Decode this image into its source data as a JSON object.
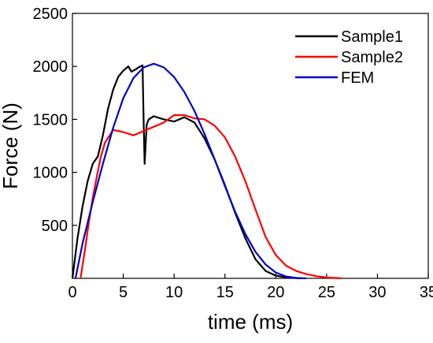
{
  "chart_data": {
    "type": "line",
    "title": "",
    "xlabel": "time (ms)",
    "ylabel": "Force (N)",
    "xlim": [
      0,
      35
    ],
    "ylim": [
      0,
      2500
    ],
    "x_ticks": [
      0,
      5,
      10,
      15,
      20,
      25,
      30,
      35
    ],
    "y_ticks": [
      500,
      1000,
      1500,
      2000,
      2500
    ],
    "grid": false,
    "legend": "top-right",
    "series": [
      {
        "name": "Sample1",
        "color": "#000000",
        "x": [
          0,
          0.5,
          1,
          1.5,
          2,
          2.5,
          3,
          3.5,
          4,
          4.5,
          5,
          5.5,
          5.8,
          6.2,
          6.5,
          6.9,
          7.0,
          7.1,
          7.3,
          7.5,
          8,
          9,
          10,
          11,
          12,
          13,
          14,
          15,
          16,
          17,
          18,
          19,
          20,
          21,
          22,
          22.5
        ],
        "y": [
          0,
          380,
          680,
          920,
          1080,
          1150,
          1350,
          1600,
          1780,
          1900,
          1960,
          2000,
          1950,
          1970,
          1990,
          2010,
          1500,
          1080,
          1450,
          1500,
          1530,
          1500,
          1480,
          1520,
          1470,
          1320,
          1120,
          880,
          620,
          380,
          180,
          70,
          25,
          10,
          3,
          0
        ]
      },
      {
        "name": "Sample2",
        "color": "#ff0000",
        "x": [
          0.8,
          1.2,
          1.6,
          2,
          2.4,
          2.8,
          3.2,
          3.6,
          4,
          5,
          6,
          7,
          8,
          9,
          10,
          11,
          12,
          13,
          14,
          15,
          16,
          17,
          18,
          19,
          20,
          21,
          22,
          23,
          24,
          25,
          26,
          26.5
        ],
        "y": [
          0,
          250,
          520,
          760,
          960,
          1150,
          1280,
          1340,
          1400,
          1380,
          1350,
          1390,
          1430,
          1470,
          1540,
          1540,
          1510,
          1500,
          1440,
          1330,
          1150,
          920,
          650,
          390,
          220,
          120,
          70,
          40,
          20,
          8,
          3,
          0
        ]
      },
      {
        "name": "FEM",
        "color": "#0000cc",
        "x": [
          0.3,
          1,
          2,
          3,
          4,
          5,
          6,
          7,
          8,
          9,
          10,
          11,
          12,
          13,
          14,
          15,
          16,
          17,
          18,
          19,
          20,
          21,
          22,
          23
        ],
        "y": [
          0,
          330,
          720,
          1080,
          1420,
          1700,
          1890,
          1990,
          2025,
          1990,
          1900,
          1760,
          1580,
          1360,
          1120,
          870,
          630,
          420,
          250,
          130,
          55,
          18,
          4,
          0
        ]
      }
    ]
  }
}
